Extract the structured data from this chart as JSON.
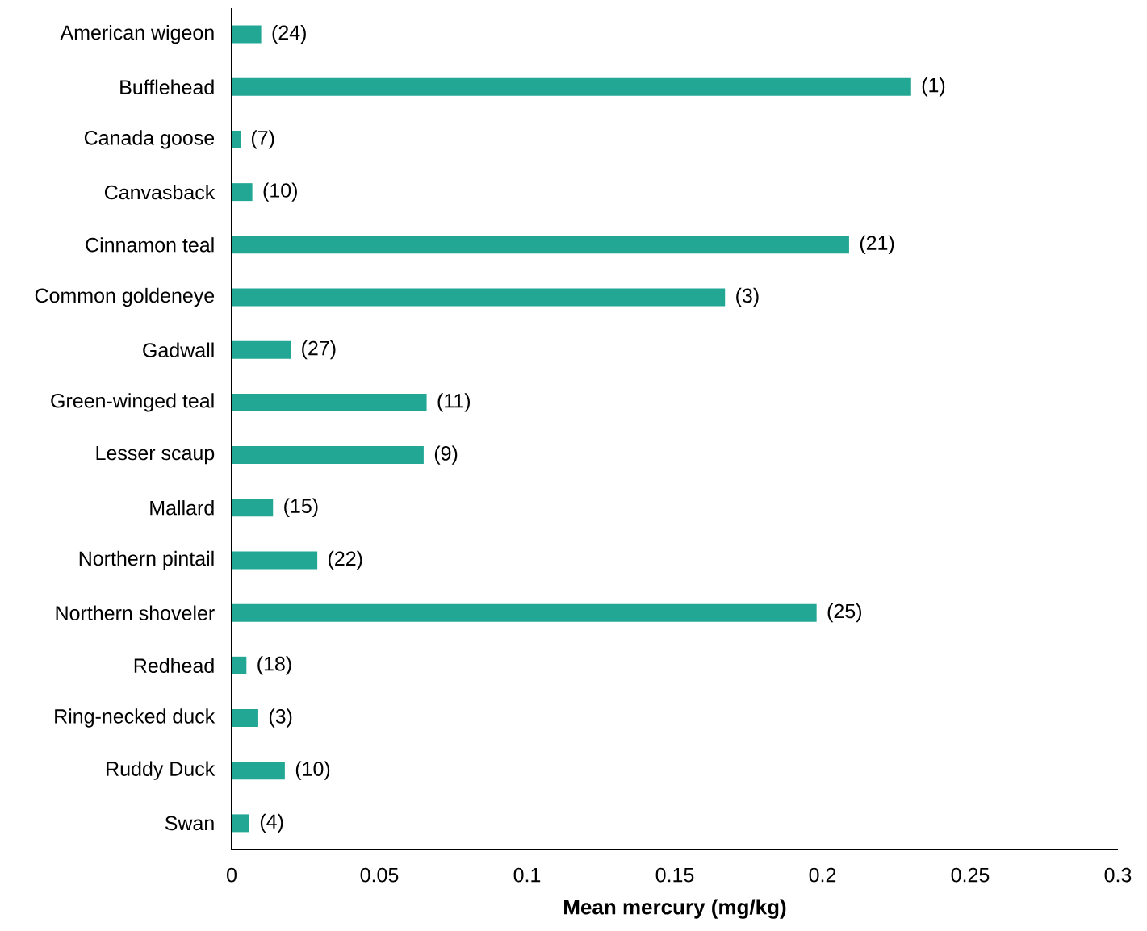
{
  "chart_data": {
    "type": "bar",
    "orientation": "horizontal",
    "xlabel": "Mean mercury (mg/kg)",
    "categories": [
      "American wigeon",
      "Bufflehead",
      "Canada goose",
      "Canvasback",
      "Cinnamon teal",
      "Common goldeneye",
      "Gadwall",
      "Green-winged teal",
      "Lesser scaup",
      "Mallard",
      "Northern pintail",
      "Northern shoveler",
      "Redhead",
      "Ring-necked duck",
      "Ruddy Duck",
      "Swan"
    ],
    "values": [
      0.01,
      0.23,
      0.003,
      0.007,
      0.209,
      0.167,
      0.02,
      0.066,
      0.065,
      0.014,
      0.029,
      0.198,
      0.005,
      0.009,
      0.018,
      0.006
    ],
    "annotations": [
      {
        "text": "(24)",
        "x": 0.01,
        "y": "American wigeon"
      },
      {
        "text": "(1)",
        "x": 0.23,
        "y": "Bufflehead"
      },
      {
        "text": "(7)",
        "x": 0.003,
        "y": "Canada goose"
      },
      {
        "text": "(10)",
        "x": 0.007,
        "y": "Canvasback"
      },
      {
        "text": "(21)",
        "x": 0.209,
        "y": "Cinnamon teal"
      },
      {
        "text": "(3)",
        "x": 0.167,
        "y": "Common goldeneye"
      },
      {
        "text": "(27)",
        "x": 0.02,
        "y": "Gadwall"
      },
      {
        "text": "(11)",
        "x": 0.066,
        "y": "Green-winged teal"
      },
      {
        "text": "(9)",
        "x": 0.065,
        "y": "Lesser scaup"
      },
      {
        "text": "(15)",
        "x": 0.014,
        "y": "Mallard"
      },
      {
        "text": "(22)",
        "x": 0.029,
        "y": "Northern pintail"
      },
      {
        "text": "(25)",
        "x": 0.198,
        "y": "Northern shoveler"
      },
      {
        "text": "(18)",
        "x": 0.005,
        "y": "Redhead"
      },
      {
        "text": "(3)",
        "x": 0.009,
        "y": "Ring-necked duck"
      },
      {
        "text": "(10)",
        "x": 0.018,
        "y": "Ruddy Duck"
      },
      {
        "text": "(4)",
        "x": 0.006,
        "y": "Swan"
      }
    ],
    "color": "#22a795",
    "xlim": [
      0,
      0.3
    ],
    "xticks": [
      0,
      0.05,
      0.1,
      0.15,
      0.2,
      0.25,
      0.3
    ]
  }
}
